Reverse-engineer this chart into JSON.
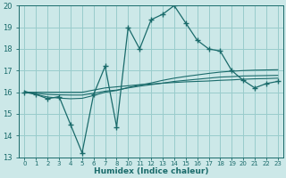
{
  "xlabel": "Humidex (Indice chaleur)",
  "bg_color": "#cce8e8",
  "grid_color": "#99cccc",
  "line_color": "#1a6b6b",
  "xlabels": [
    "0",
    "1",
    "2",
    "3",
    "4",
    "5",
    "6",
    "7",
    "8",
    "10",
    "11",
    "12",
    "13",
    "14",
    "15",
    "16",
    "17",
    "18",
    "19",
    "20",
    "21",
    "22",
    "23"
  ],
  "y_main": [
    16.0,
    15.9,
    15.7,
    15.8,
    14.5,
    13.2,
    15.9,
    17.2,
    14.4,
    19.0,
    18.0,
    19.35,
    19.6,
    20.0,
    19.2,
    18.4,
    18.0,
    17.9,
    17.0,
    16.55,
    16.2,
    16.4,
    16.5
  ],
  "y_reg1": [
    16.0,
    16.0,
    16.0,
    16.0,
    16.0,
    16.0,
    16.1,
    16.2,
    16.25,
    16.3,
    16.35,
    16.38,
    16.42,
    16.45,
    16.48,
    16.5,
    16.52,
    16.55,
    16.57,
    16.6,
    16.62,
    16.63,
    16.65
  ],
  "y_reg2": [
    16.0,
    15.95,
    15.9,
    15.88,
    15.87,
    15.87,
    15.95,
    16.05,
    16.1,
    16.2,
    16.28,
    16.35,
    16.42,
    16.5,
    16.55,
    16.6,
    16.65,
    16.7,
    16.72,
    16.75,
    16.76,
    16.77,
    16.78
  ],
  "y_reg3": [
    16.05,
    15.9,
    15.78,
    15.73,
    15.7,
    15.72,
    15.85,
    16.0,
    16.08,
    16.22,
    16.33,
    16.43,
    16.55,
    16.65,
    16.73,
    16.8,
    16.87,
    16.93,
    16.97,
    17.0,
    17.02,
    17.03,
    17.04
  ],
  "ylim": [
    13,
    20
  ],
  "yticks": [
    13,
    14,
    15,
    16,
    17,
    18,
    19,
    20
  ]
}
